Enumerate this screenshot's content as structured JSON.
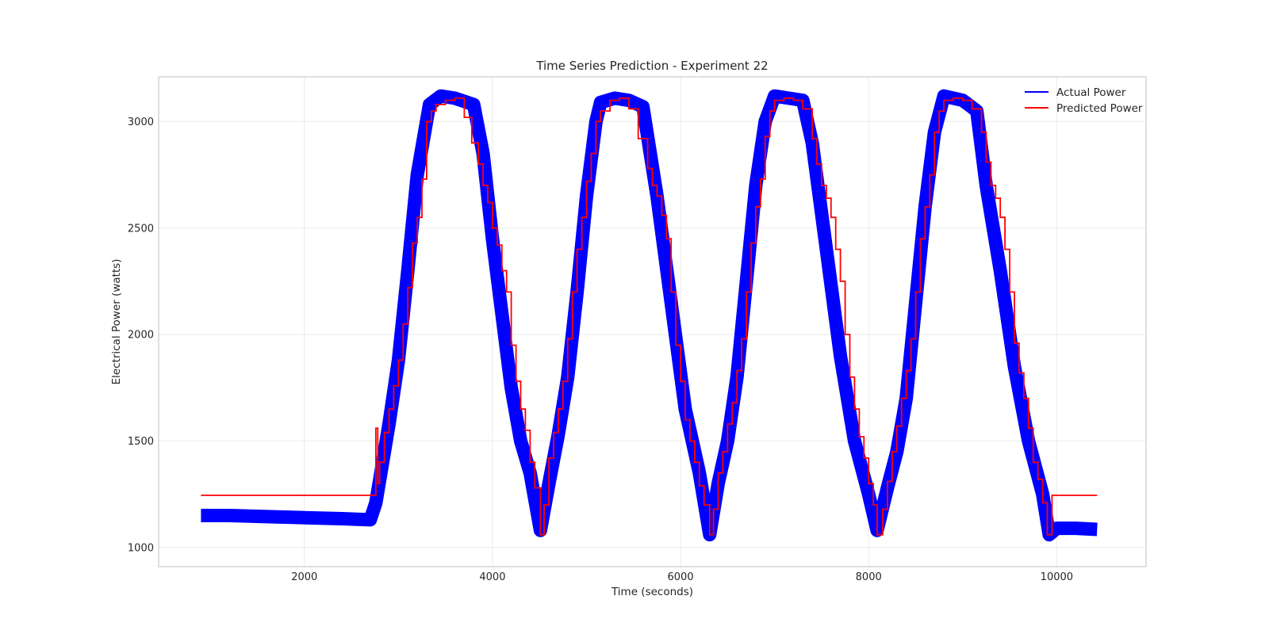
{
  "chart_data": {
    "type": "line",
    "title": "Time Series Prediction - Experiment 22",
    "xlabel": "Time (seconds)",
    "ylabel": "Electrical Power (watts)",
    "xlim": [
      450,
      10950
    ],
    "ylim": [
      910,
      3210
    ],
    "xticks": [
      2000,
      4000,
      6000,
      8000,
      10000
    ],
    "yticks": [
      1000,
      1500,
      2000,
      2500,
      3000
    ],
    "grid": true,
    "legend_position": "top-right",
    "series": [
      {
        "name": "Actual Power",
        "color": "#0000ff",
        "x": [
          900,
          1200,
          1600,
          2000,
          2400,
          2700,
          2760,
          2900,
          3000,
          3100,
          3200,
          3330,
          3450,
          3600,
          3800,
          3900,
          4000,
          4200,
          4300,
          4400,
          4510,
          4600,
          4700,
          4800,
          4900,
          5000,
          5100,
          5150,
          5300,
          5450,
          5600,
          5750,
          5900,
          6050,
          6200,
          6310,
          6400,
          6500,
          6600,
          6700,
          6800,
          6900,
          7000,
          7150,
          7300,
          7400,
          7550,
          7700,
          7850,
          8000,
          8090,
          8200,
          8300,
          8400,
          8500,
          8600,
          8700,
          8800,
          9000,
          9150,
          9250,
          9400,
          9550,
          9700,
          9850,
          9920,
          10000,
          10200,
          10430
        ],
        "y": [
          1150,
          1150,
          1145,
          1140,
          1135,
          1130,
          1210,
          1580,
          1880,
          2300,
          2750,
          3080,
          3120,
          3110,
          3080,
          2850,
          2450,
          1750,
          1500,
          1350,
          1080,
          1300,
          1530,
          1800,
          2200,
          2650,
          3000,
          3090,
          3110,
          3100,
          3070,
          2650,
          2150,
          1650,
          1350,
          1060,
          1300,
          1500,
          1800,
          2250,
          2700,
          3000,
          3120,
          3110,
          3100,
          2900,
          2400,
          1900,
          1500,
          1250,
          1080,
          1280,
          1450,
          1700,
          2150,
          2600,
          2950,
          3120,
          3100,
          3050,
          2700,
          2300,
          1850,
          1500,
          1250,
          1060,
          1090,
          1090,
          1085
        ]
      },
      {
        "name": "Predicted Power",
        "color": "#ff0000",
        "x": [
          900,
          2740,
          2760,
          2780,
          2800,
          2850,
          2900,
          2950,
          3000,
          3050,
          3100,
          3150,
          3200,
          3250,
          3300,
          3350,
          3400,
          3500,
          3600,
          3700,
          3780,
          3850,
          3900,
          3950,
          4000,
          4050,
          4100,
          4150,
          4200,
          4250,
          4300,
          4350,
          4400,
          4450,
          4510,
          4550,
          4600,
          4650,
          4700,
          4750,
          4800,
          4850,
          4900,
          4950,
          5000,
          5050,
          5100,
          5150,
          5250,
          5350,
          5450,
          5550,
          5650,
          5700,
          5750,
          5800,
          5850,
          5900,
          5950,
          6000,
          6050,
          6100,
          6150,
          6200,
          6250,
          6310,
          6350,
          6400,
          6450,
          6500,
          6550,
          6600,
          6650,
          6700,
          6750,
          6800,
          6850,
          6900,
          6950,
          7000,
          7100,
          7200,
          7300,
          7400,
          7450,
          7500,
          7550,
          7600,
          7650,
          7700,
          7750,
          7800,
          7850,
          7900,
          7950,
          8000,
          8050,
          8090,
          8150,
          8200,
          8250,
          8300,
          8350,
          8400,
          8450,
          8500,
          8550,
          8600,
          8650,
          8700,
          8750,
          8800,
          8900,
          9000,
          9100,
          9200,
          9250,
          9300,
          9350,
          9400,
          9450,
          9500,
          9550,
          9600,
          9650,
          9700,
          9750,
          9800,
          9850,
          9900,
          9950,
          10430
        ],
        "y": [
          1245,
          1245,
          1560,
          1300,
          1400,
          1540,
          1650,
          1760,
          1880,
          2050,
          2220,
          2430,
          2550,
          2730,
          3000,
          3050,
          3080,
          3100,
          3110,
          3020,
          2900,
          2800,
          2700,
          2620,
          2500,
          2420,
          2300,
          2200,
          1950,
          1780,
          1650,
          1550,
          1400,
          1280,
          1060,
          1200,
          1420,
          1540,
          1650,
          1780,
          1980,
          2200,
          2400,
          2550,
          2720,
          2850,
          3000,
          3050,
          3100,
          3110,
          3060,
          2920,
          2780,
          2700,
          2650,
          2560,
          2450,
          2200,
          1950,
          1780,
          1600,
          1500,
          1400,
          1290,
          1200,
          1060,
          1180,
          1350,
          1450,
          1580,
          1680,
          1830,
          1980,
          2200,
          2430,
          2600,
          2730,
          2930,
          3050,
          3100,
          3110,
          3100,
          3060,
          2920,
          2800,
          2700,
          2640,
          2550,
          2400,
          2250,
          2000,
          1800,
          1650,
          1520,
          1420,
          1300,
          1200,
          1060,
          1180,
          1310,
          1450,
          1570,
          1700,
          1830,
          1980,
          2200,
          2450,
          2600,
          2750,
          2950,
          3050,
          3100,
          3110,
          3100,
          3060,
          2950,
          2810,
          2700,
          2640,
          2550,
          2400,
          2200,
          1960,
          1820,
          1700,
          1560,
          1400,
          1320,
          1210,
          1060,
          1245,
          1245
        ]
      }
    ]
  }
}
